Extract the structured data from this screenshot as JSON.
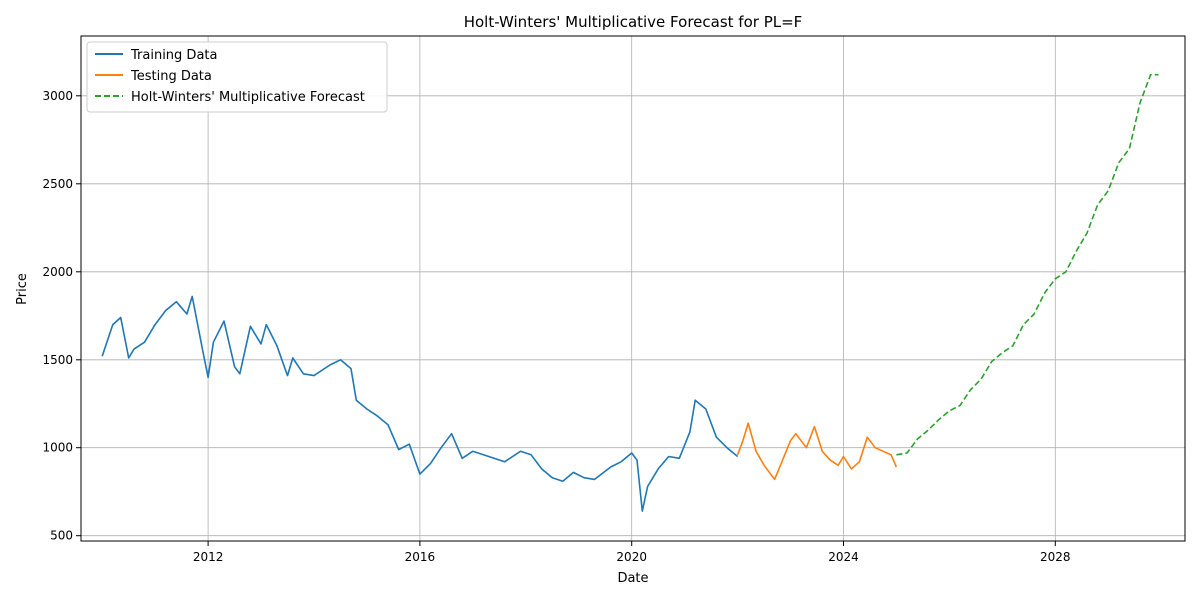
{
  "chart_data": {
    "type": "line",
    "title": "Holt-Winters' Multiplicative Forecast for PL=F",
    "xlabel": "Date",
    "ylabel": "Price",
    "xlim": [
      2009.6,
      2030.45
    ],
    "ylim": [
      470,
      3340
    ],
    "x_ticks": [
      2012,
      2016,
      2020,
      2024,
      2028
    ],
    "x_tick_labels": [
      "2012",
      "2016",
      "2020",
      "2024",
      "2028"
    ],
    "y_ticks": [
      500,
      1000,
      1500,
      2000,
      2500,
      3000
    ],
    "y_tick_labels": [
      "500",
      "1000",
      "1500",
      "2000",
      "2500",
      "3000"
    ],
    "grid": true,
    "legend_position": "upper-left",
    "series": [
      {
        "name": "Training Data",
        "color": "#1f77b4",
        "style": "solid",
        "x": [
          2010.0,
          2010.1,
          2010.2,
          2010.35,
          2010.5,
          2010.6,
          2010.8,
          2011.0,
          2011.2,
          2011.4,
          2011.6,
          2011.7,
          2011.9,
          2012.0,
          2012.1,
          2012.3,
          2012.5,
          2012.6,
          2012.8,
          2013.0,
          2013.1,
          2013.3,
          2013.5,
          2013.6,
          2013.8,
          2014.0,
          2014.3,
          2014.5,
          2014.7,
          2014.8,
          2015.0,
          2015.2,
          2015.4,
          2015.6,
          2015.8,
          2016.0,
          2016.2,
          2016.4,
          2016.6,
          2016.8,
          2017.0,
          2017.3,
          2017.6,
          2017.9,
          2018.1,
          2018.3,
          2018.5,
          2018.7,
          2018.9,
          2019.1,
          2019.3,
          2019.6,
          2019.8,
          2020.0,
          2020.1,
          2020.2,
          2020.3,
          2020.5,
          2020.7,
          2020.9,
          2021.1,
          2021.2,
          2021.4,
          2021.6,
          2021.8,
          2022.0
        ],
        "y": [
          1520,
          1610,
          1700,
          1740,
          1510,
          1560,
          1600,
          1700,
          1780,
          1830,
          1760,
          1860,
          1550,
          1400,
          1600,
          1720,
          1460,
          1420,
          1690,
          1590,
          1700,
          1580,
          1410,
          1510,
          1420,
          1410,
          1470,
          1500,
          1450,
          1270,
          1220,
          1180,
          1130,
          990,
          1020,
          850,
          910,
          1000,
          1080,
          940,
          980,
          950,
          920,
          980,
          960,
          880,
          830,
          810,
          860,
          830,
          820,
          890,
          920,
          970,
          930,
          640,
          780,
          880,
          950,
          940,
          1090,
          1270,
          1220,
          1060,
          1000,
          950
        ]
      },
      {
        "name": "Testing Data",
        "color": "#ff7f0e",
        "style": "solid",
        "x": [
          2022.0,
          2022.1,
          2022.2,
          2022.35,
          2022.5,
          2022.7,
          2022.85,
          2023.0,
          2023.1,
          2023.3,
          2023.45,
          2023.6,
          2023.75,
          2023.9,
          2024.0,
          2024.15,
          2024.3,
          2024.45,
          2024.6,
          2024.75,
          2024.9,
          2025.0
        ],
        "y": [
          960,
          1040,
          1140,
          980,
          900,
          820,
          930,
          1040,
          1080,
          1000,
          1120,
          980,
          930,
          900,
          950,
          880,
          920,
          1060,
          1000,
          980,
          960,
          890
        ]
      },
      {
        "name": "Holt-Winters' Multiplicative Forecast",
        "color": "#2ca02c",
        "style": "dashed",
        "x": [
          2025.0,
          2025.2,
          2025.4,
          2025.6,
          2025.8,
          2026.0,
          2026.2,
          2026.4,
          2026.6,
          2026.8,
          2027.0,
          2027.2,
          2027.4,
          2027.6,
          2027.8,
          2028.0,
          2028.2,
          2028.4,
          2028.6,
          2028.8,
          2029.0,
          2029.2,
          2029.4,
          2029.6,
          2029.8,
          2029.95
        ],
        "y": [
          960,
          970,
          1050,
          1100,
          1160,
          1210,
          1240,
          1330,
          1390,
          1490,
          1540,
          1580,
          1700,
          1760,
          1880,
          1960,
          2000,
          2120,
          2220,
          2380,
          2460,
          2620,
          2700,
          2960,
          3120,
          3120
        ]
      }
    ]
  }
}
